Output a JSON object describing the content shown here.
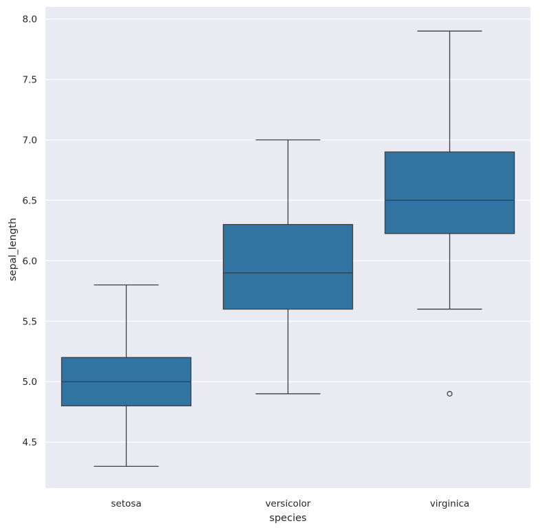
{
  "chart_data": {
    "type": "box",
    "xlabel": "species",
    "ylabel": "sepal_length",
    "ylim": [
      4.12,
      8.1
    ],
    "yticks": [
      4.5,
      5.0,
      5.5,
      6.0,
      6.5,
      7.0,
      7.5,
      8.0
    ],
    "ytick_labels": [
      "4.5",
      "5.0",
      "5.5",
      "6.0",
      "6.5",
      "7.0",
      "7.5",
      "8.0"
    ],
    "grid": true,
    "box_color": "#3274a1",
    "line_color": "#3d3d3d",
    "background_color": "#eaeaf2",
    "grid_color": "#ffffff",
    "categories": [
      "setosa",
      "versicolor",
      "virginica"
    ],
    "boxes": [
      {
        "category": "setosa",
        "whisker_low": 4.3,
        "q1": 4.8,
        "median": 5.0,
        "q3": 5.2,
        "whisker_high": 5.8,
        "outliers": []
      },
      {
        "category": "versicolor",
        "whisker_low": 4.9,
        "q1": 5.6,
        "median": 5.9,
        "q3": 6.3,
        "whisker_high": 7.0,
        "outliers": []
      },
      {
        "category": "virginica",
        "whisker_low": 5.6,
        "q1": 6.225,
        "median": 6.5,
        "q3": 6.9,
        "whisker_high": 7.9,
        "outliers": [
          4.9
        ]
      }
    ]
  }
}
